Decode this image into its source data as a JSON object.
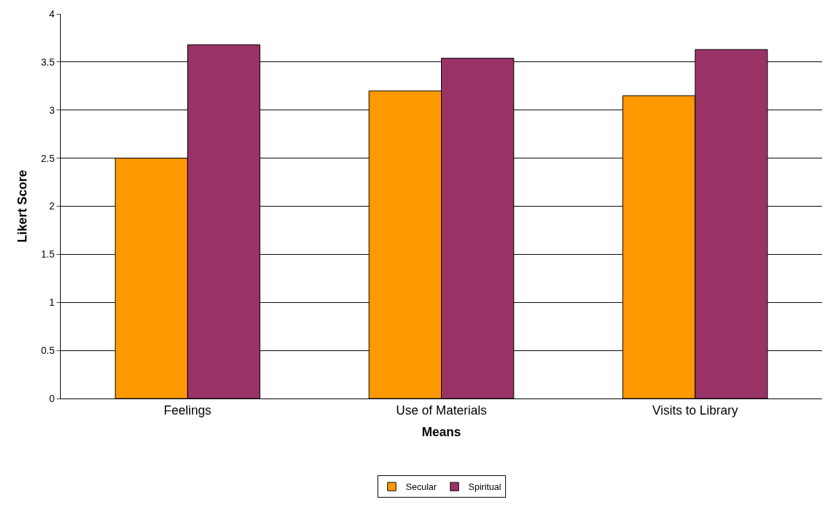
{
  "chart_data": {
    "type": "bar",
    "xlabel": "Means",
    "ylabel": "Likert Score",
    "categories": [
      "Feelings",
      "Use of Materials",
      "Visits to Library"
    ],
    "series": [
      {
        "name": "Secular",
        "color": "#ff9900",
        "values": [
          2.5,
          3.2,
          3.15
        ]
      },
      {
        "name": "Spiritual",
        "color": "#993366",
        "values": [
          3.68,
          3.54,
          3.63
        ]
      }
    ],
    "ylim": [
      0,
      4
    ],
    "yticks": [
      0,
      0.5,
      1,
      1.5,
      2,
      2.5,
      3,
      3.5,
      4
    ],
    "grid": "y",
    "legend": "bottom"
  }
}
